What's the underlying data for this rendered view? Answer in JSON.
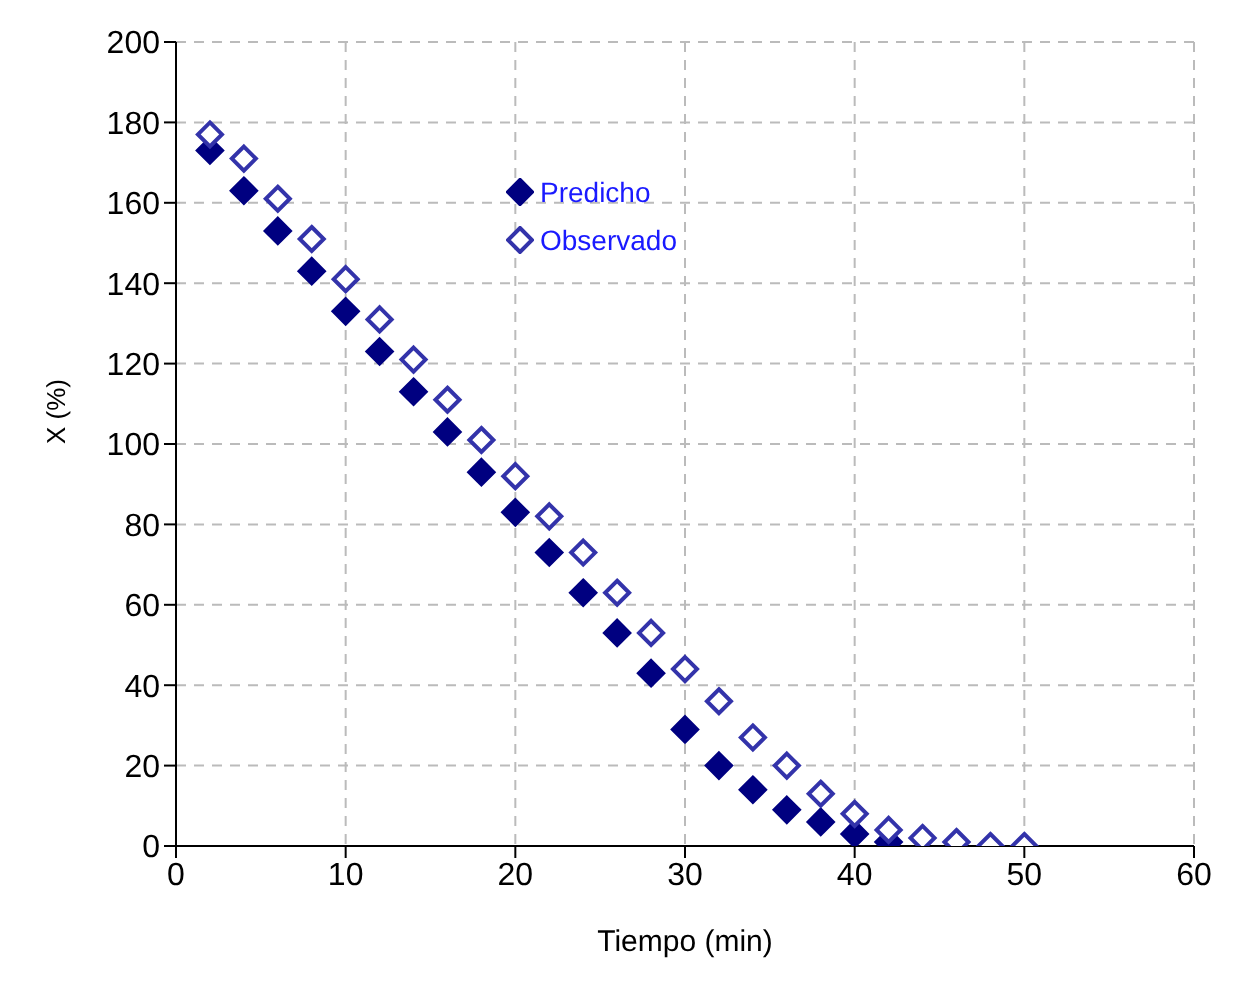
{
  "chart_data": {
    "type": "scatter",
    "xlabel": "Tiempo (min)",
    "ylabel": "X (%)",
    "xlim": [
      0,
      60
    ],
    "xticks": [
      0,
      10,
      20,
      30,
      40,
      50,
      60
    ],
    "ylim": [
      0,
      200
    ],
    "yticks": [
      0,
      20,
      40,
      60,
      80,
      100,
      120,
      140,
      160,
      180,
      200
    ],
    "grid": true,
    "legend": "top",
    "series": [
      {
        "name": "Predicho",
        "color": "#000080",
        "marker": "diamond",
        "x": [
          2,
          4,
          6,
          8,
          10,
          12,
          14,
          16,
          18,
          20,
          22,
          24,
          26,
          28,
          30,
          32,
          34,
          36,
          38,
          40,
          42
        ],
        "values": [
          173,
          163,
          153,
          143,
          133,
          123,
          113,
          103,
          93,
          83,
          73,
          63,
          53,
          43,
          29,
          20,
          14,
          9,
          6,
          3,
          1
        ]
      },
      {
        "name": "Observado",
        "color": "#3333aa",
        "marker": "diamond",
        "x": [
          2,
          4,
          6,
          8,
          10,
          12,
          14,
          16,
          18,
          20,
          22,
          24,
          26,
          28,
          30,
          32,
          34,
          36,
          38,
          40,
          42,
          44,
          46,
          48,
          50
        ],
        "values": [
          177,
          171,
          161,
          151,
          141,
          131,
          121,
          111,
          101,
          92,
          82,
          73,
          63,
          53,
          44,
          36,
          27,
          20,
          13,
          8,
          4,
          2,
          1,
          0,
          0
        ]
      }
    ]
  }
}
